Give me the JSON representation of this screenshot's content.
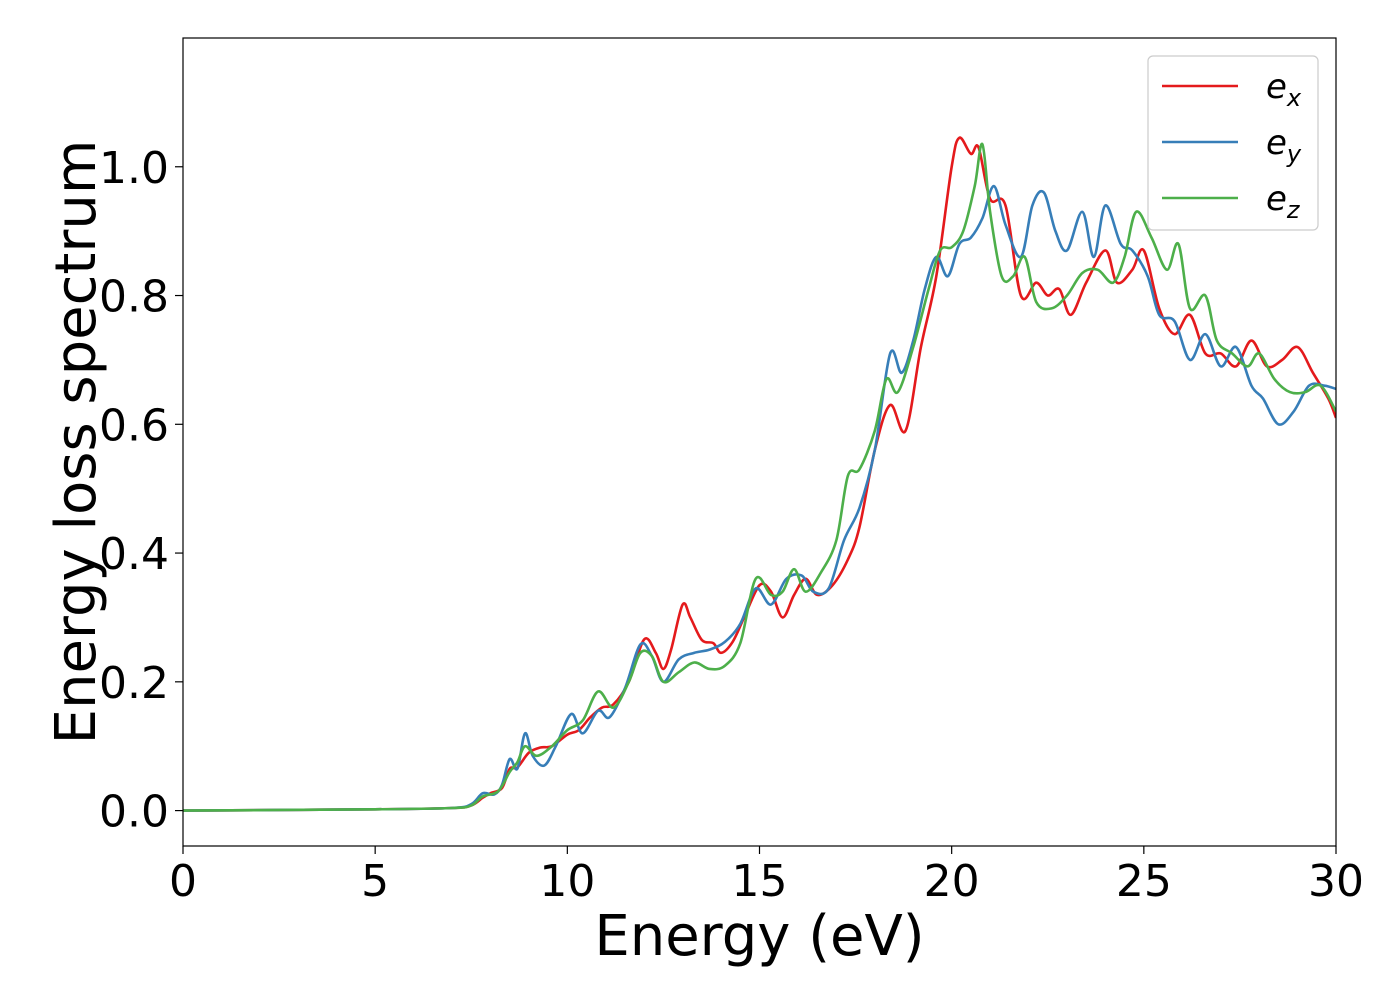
{
  "chart_data": {
    "type": "line",
    "xlabel": "Energy (eV)",
    "ylabel": "Energy loss spectrum",
    "xlim": [
      0,
      30
    ],
    "ylim": [
      -0.055,
      1.2
    ],
    "xticks": [
      "0",
      "5",
      "10",
      "15",
      "20",
      "25",
      "30"
    ],
    "yticks": [
      "0.0",
      "0.2",
      "0.4",
      "0.6",
      "0.8",
      "1.0"
    ],
    "grid": false,
    "legend_position": "top-right",
    "series": [
      {
        "name": "e_x",
        "label_main": "e",
        "label_sub": "x",
        "color": "#e41a1c",
        "points": [
          [
            0,
            0
          ],
          [
            5,
            0.002
          ],
          [
            7,
            0.004
          ],
          [
            7.5,
            0.008
          ],
          [
            7.8,
            0.02
          ],
          [
            8.0,
            0.027
          ],
          [
            8.3,
            0.035
          ],
          [
            8.5,
            0.065
          ],
          [
            8.7,
            0.067
          ],
          [
            9.0,
            0.09
          ],
          [
            9.3,
            0.098
          ],
          [
            9.6,
            0.1
          ],
          [
            10.0,
            0.118
          ],
          [
            10.3,
            0.125
          ],
          [
            10.6,
            0.145
          ],
          [
            10.9,
            0.16
          ],
          [
            11.2,
            0.165
          ],
          [
            11.6,
            0.2
          ],
          [
            12.0,
            0.266
          ],
          [
            12.3,
            0.245
          ],
          [
            12.5,
            0.22
          ],
          [
            12.7,
            0.25
          ],
          [
            13.0,
            0.32
          ],
          [
            13.2,
            0.3
          ],
          [
            13.5,
            0.265
          ],
          [
            13.8,
            0.26
          ],
          [
            14.0,
            0.245
          ],
          [
            14.3,
            0.262
          ],
          [
            14.6,
            0.3
          ],
          [
            15.0,
            0.35
          ],
          [
            15.3,
            0.34
          ],
          [
            15.6,
            0.3
          ],
          [
            15.9,
            0.335
          ],
          [
            16.2,
            0.36
          ],
          [
            16.5,
            0.335
          ],
          [
            16.9,
            0.35
          ],
          [
            17.3,
            0.39
          ],
          [
            17.6,
            0.44
          ],
          [
            18.0,
            0.56
          ],
          [
            18.4,
            0.63
          ],
          [
            18.8,
            0.59
          ],
          [
            19.2,
            0.72
          ],
          [
            19.6,
            0.83
          ],
          [
            20.0,
            1.0
          ],
          [
            20.2,
            1.045
          ],
          [
            20.5,
            1.02
          ],
          [
            20.7,
            1.03
          ],
          [
            21.0,
            0.95
          ],
          [
            21.4,
            0.94
          ],
          [
            21.8,
            0.8
          ],
          [
            22.2,
            0.82
          ],
          [
            22.5,
            0.8
          ],
          [
            22.8,
            0.81
          ],
          [
            23.1,
            0.77
          ],
          [
            23.5,
            0.82
          ],
          [
            24.0,
            0.87
          ],
          [
            24.3,
            0.82
          ],
          [
            24.7,
            0.84
          ],
          [
            25.0,
            0.87
          ],
          [
            25.4,
            0.78
          ],
          [
            25.8,
            0.74
          ],
          [
            26.2,
            0.77
          ],
          [
            26.6,
            0.71
          ],
          [
            27.0,
            0.71
          ],
          [
            27.4,
            0.69
          ],
          [
            27.8,
            0.73
          ],
          [
            28.2,
            0.69
          ],
          [
            28.6,
            0.7
          ],
          [
            29.0,
            0.72
          ],
          [
            29.4,
            0.68
          ],
          [
            29.8,
            0.64
          ],
          [
            30.0,
            0.61
          ]
        ]
      },
      {
        "name": "e_y",
        "label_main": "e",
        "label_sub": "y",
        "color": "#377eb8",
        "points": [
          [
            0,
            0
          ],
          [
            5,
            0.002
          ],
          [
            7,
            0.004
          ],
          [
            7.5,
            0.01
          ],
          [
            7.8,
            0.027
          ],
          [
            8.1,
            0.025
          ],
          [
            8.3,
            0.04
          ],
          [
            8.5,
            0.08
          ],
          [
            8.7,
            0.065
          ],
          [
            8.9,
            0.12
          ],
          [
            9.1,
            0.085
          ],
          [
            9.4,
            0.07
          ],
          [
            9.7,
            0.1
          ],
          [
            10.1,
            0.15
          ],
          [
            10.4,
            0.12
          ],
          [
            10.8,
            0.155
          ],
          [
            11.1,
            0.145
          ],
          [
            11.5,
            0.19
          ],
          [
            11.9,
            0.258
          ],
          [
            12.2,
            0.24
          ],
          [
            12.5,
            0.2
          ],
          [
            12.9,
            0.235
          ],
          [
            13.3,
            0.245
          ],
          [
            13.7,
            0.25
          ],
          [
            14.1,
            0.262
          ],
          [
            14.5,
            0.29
          ],
          [
            14.9,
            0.345
          ],
          [
            15.3,
            0.32
          ],
          [
            15.7,
            0.36
          ],
          [
            16.1,
            0.365
          ],
          [
            16.4,
            0.34
          ],
          [
            16.8,
            0.345
          ],
          [
            17.2,
            0.42
          ],
          [
            17.6,
            0.47
          ],
          [
            18.0,
            0.56
          ],
          [
            18.4,
            0.71
          ],
          [
            18.7,
            0.68
          ],
          [
            19.0,
            0.73
          ],
          [
            19.3,
            0.81
          ],
          [
            19.6,
            0.86
          ],
          [
            19.9,
            0.83
          ],
          [
            20.2,
            0.88
          ],
          [
            20.5,
            0.89
          ],
          [
            20.8,
            0.92
          ],
          [
            21.1,
            0.97
          ],
          [
            21.4,
            0.91
          ],
          [
            21.8,
            0.86
          ],
          [
            22.1,
            0.94
          ],
          [
            22.4,
            0.96
          ],
          [
            22.7,
            0.9
          ],
          [
            23.0,
            0.87
          ],
          [
            23.4,
            0.93
          ],
          [
            23.7,
            0.86
          ],
          [
            24.0,
            0.94
          ],
          [
            24.4,
            0.88
          ],
          [
            24.7,
            0.87
          ],
          [
            25.1,
            0.83
          ],
          [
            25.4,
            0.77
          ],
          [
            25.8,
            0.76
          ],
          [
            26.2,
            0.7
          ],
          [
            26.6,
            0.74
          ],
          [
            27.0,
            0.69
          ],
          [
            27.4,
            0.72
          ],
          [
            27.8,
            0.66
          ],
          [
            28.1,
            0.64
          ],
          [
            28.5,
            0.6
          ],
          [
            28.9,
            0.62
          ],
          [
            29.3,
            0.66
          ],
          [
            29.7,
            0.66
          ],
          [
            30.0,
            0.655
          ]
        ]
      },
      {
        "name": "e_z",
        "label_main": "e",
        "label_sub": "z",
        "color": "#4daf4a",
        "points": [
          [
            0,
            0
          ],
          [
            5,
            0.002
          ],
          [
            7,
            0.004
          ],
          [
            7.5,
            0.008
          ],
          [
            7.8,
            0.022
          ],
          [
            8.2,
            0.03
          ],
          [
            8.5,
            0.06
          ],
          [
            8.7,
            0.075
          ],
          [
            8.9,
            0.1
          ],
          [
            9.2,
            0.085
          ],
          [
            9.6,
            0.1
          ],
          [
            10.0,
            0.125
          ],
          [
            10.4,
            0.14
          ],
          [
            10.8,
            0.185
          ],
          [
            11.2,
            0.16
          ],
          [
            11.6,
            0.2
          ],
          [
            11.9,
            0.245
          ],
          [
            12.2,
            0.24
          ],
          [
            12.5,
            0.2
          ],
          [
            12.9,
            0.215
          ],
          [
            13.3,
            0.23
          ],
          [
            13.7,
            0.22
          ],
          [
            14.1,
            0.225
          ],
          [
            14.5,
            0.26
          ],
          [
            14.9,
            0.36
          ],
          [
            15.3,
            0.335
          ],
          [
            15.6,
            0.34
          ],
          [
            15.9,
            0.375
          ],
          [
            16.2,
            0.34
          ],
          [
            16.6,
            0.37
          ],
          [
            17.0,
            0.42
          ],
          [
            17.3,
            0.52
          ],
          [
            17.6,
            0.53
          ],
          [
            18.0,
            0.59
          ],
          [
            18.3,
            0.67
          ],
          [
            18.6,
            0.65
          ],
          [
            19.0,
            0.72
          ],
          [
            19.4,
            0.81
          ],
          [
            19.7,
            0.87
          ],
          [
            20.0,
            0.875
          ],
          [
            20.3,
            0.9
          ],
          [
            20.6,
            0.97
          ],
          [
            20.8,
            1.035
          ],
          [
            21.0,
            0.93
          ],
          [
            21.3,
            0.83
          ],
          [
            21.6,
            0.83
          ],
          [
            21.9,
            0.86
          ],
          [
            22.2,
            0.79
          ],
          [
            22.6,
            0.78
          ],
          [
            23.0,
            0.8
          ],
          [
            23.4,
            0.835
          ],
          [
            23.8,
            0.84
          ],
          [
            24.2,
            0.82
          ],
          [
            24.5,
            0.86
          ],
          [
            24.8,
            0.93
          ],
          [
            25.2,
            0.89
          ],
          [
            25.6,
            0.84
          ],
          [
            25.9,
            0.88
          ],
          [
            26.2,
            0.78
          ],
          [
            26.6,
            0.8
          ],
          [
            26.9,
            0.73
          ],
          [
            27.3,
            0.71
          ],
          [
            27.7,
            0.69
          ],
          [
            28.0,
            0.71
          ],
          [
            28.4,
            0.67
          ],
          [
            28.8,
            0.65
          ],
          [
            29.2,
            0.65
          ],
          [
            29.6,
            0.66
          ],
          [
            30.0,
            0.62
          ]
        ]
      }
    ]
  }
}
